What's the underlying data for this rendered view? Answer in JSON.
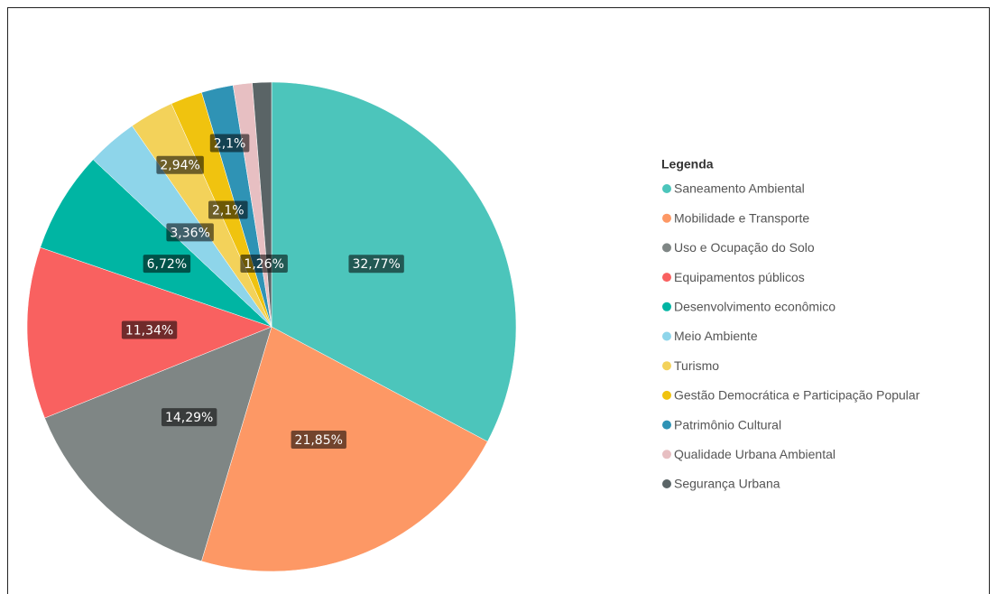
{
  "chart_data": {
    "type": "pie",
    "legend_title": "Legenda",
    "legend": "right",
    "categories": [
      "Saneamento Ambiental",
      "Mobilidade e Transporte",
      "Uso e Ocupação do Solo",
      "Equipamentos públicos",
      "Desenvolvimento econômico",
      "Meio Ambiente",
      "Turismo",
      "Gestão Democrática e Participação Popular",
      "Patrimônio Cultural",
      "Qualidade Urbana Ambiental",
      "Segurança Urbana"
    ],
    "values": [
      32.77,
      21.85,
      14.29,
      11.34,
      6.72,
      3.36,
      2.94,
      2.1,
      2.1,
      1.26,
      1.26
    ],
    "value_labels": [
      "32,77%",
      "21,85%",
      "14,29%",
      "11,34%",
      "6,72%",
      "3,36%",
      "2,94%",
      "2,1%",
      "2,1%",
      "1,26%",
      null
    ],
    "colors": [
      "#4cc5bb",
      "#fd9865",
      "#7f8685",
      "#f96160",
      "#00b5a3",
      "#8ed5ea",
      "#f3d25a",
      "#f0c30f",
      "#2f93b5",
      "#e7bfc2",
      "#5a6466"
    ]
  }
}
